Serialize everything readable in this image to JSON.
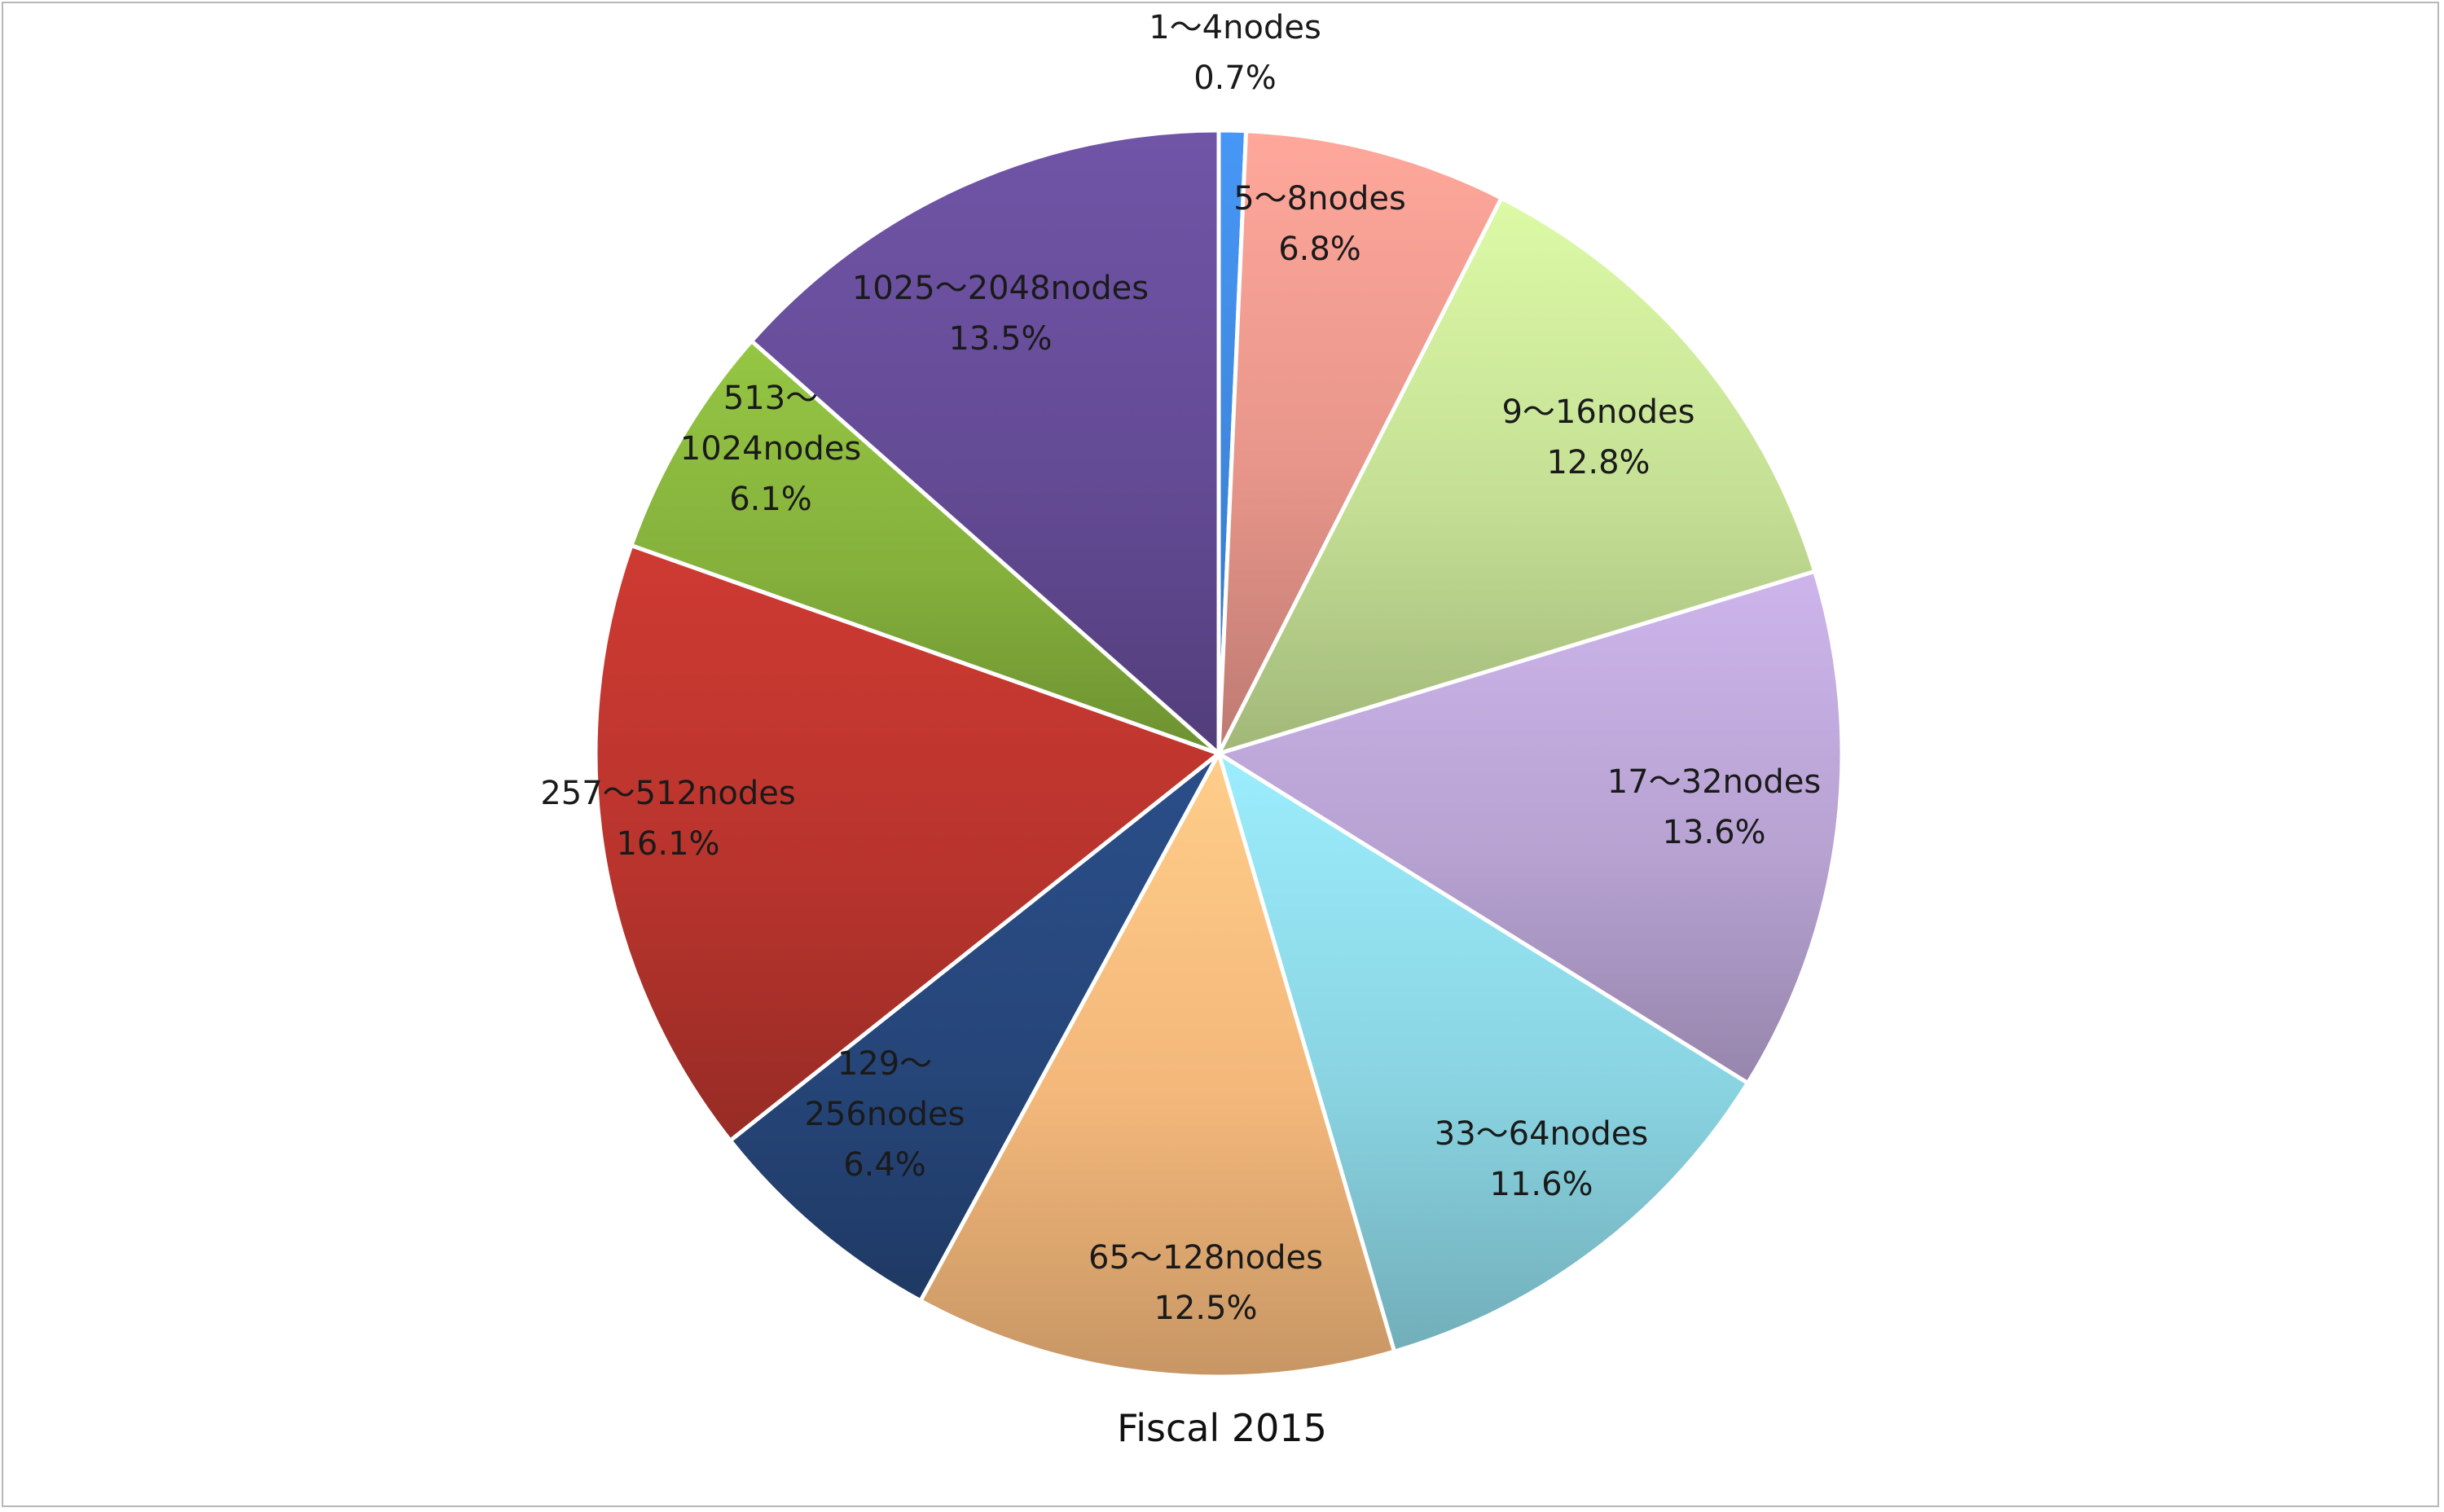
{
  "chart_data": {
    "type": "pie",
    "caption": "Fiscal 2015",
    "start_angle_deg": 0,
    "direction": "clockwise",
    "slices": [
      {
        "label_lines": [
          "1～4nodes",
          "0.7%"
        ],
        "value": 0.7,
        "color": "#3f87dc"
      },
      {
        "label_lines": [
          "5～8nodes",
          "6.8%"
        ],
        "value": 6.8,
        "color": "#e7958a"
      },
      {
        "label_lines": [
          "9～16nodes",
          "12.8%"
        ],
        "value": 12.8,
        "color": "#c4df94"
      },
      {
        "label_lines": [
          "17～32nodes",
          "13.6%"
        ],
        "value": 13.6,
        "color": "#b7a2d2"
      },
      {
        "label_lines": [
          "33～64nodes",
          "11.6%"
        ],
        "value": 11.6,
        "color": "#8ad4e2"
      },
      {
        "label_lines": [
          "65～128nodes",
          "12.5%"
        ],
        "value": 12.5,
        "color": "#f3b77a"
      },
      {
        "label_lines": [
          "129～",
          "256nodes",
          "6.4%"
        ],
        "value": 6.4,
        "color": "#26467a"
      },
      {
        "label_lines": [
          "257～512nodes",
          "16.1%"
        ],
        "value": 16.1,
        "color": "#b8342d"
      },
      {
        "label_lines": [
          "513～",
          "1024nodes",
          "6.1%"
        ],
        "value": 6.1,
        "color": "#85b13c"
      },
      {
        "label_lines": [
          "1025～2048nodes",
          "13.5%"
        ],
        "value": 13.5,
        "color": "#644b95"
      }
    ]
  }
}
